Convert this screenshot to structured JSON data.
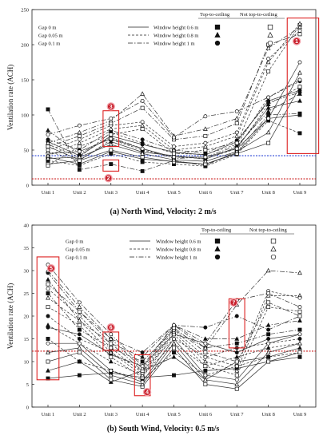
{
  "chart_data": [
    {
      "type": "line",
      "caption": "(a) North Wind, Velocity: 2 m/s",
      "ylabel": "Ventilation rate (ACH)",
      "ylim": [
        0,
        250
      ],
      "yticks": [
        "0",
        "50",
        "100",
        "150",
        "200",
        "250"
      ],
      "categories": [
        "Unit 1",
        "Unit 2",
        "Unit 3",
        "Unit 4",
        "Unit 5",
        "Unit 6",
        "Unit 7",
        "Unit 8",
        "Unit 9"
      ],
      "grid": false,
      "legend": {
        "gap_labels": [
          "Gap 0 m",
          "Gap 0.05 m",
          "Gap 0.1 m"
        ],
        "height_labels": [
          "Window height 0.6 m",
          "Window height 0.8 m",
          "Window height 1 m"
        ],
        "group_headers": [
          "Top-to-ceiling",
          "Not top-to-ceiling"
        ]
      },
      "reference_lines": [
        {
          "value": 42,
          "color": "#2a44d4"
        },
        {
          "value": 9,
          "color": "#cc2222"
        }
      ],
      "badges": [
        "1",
        "2",
        "3"
      ],
      "colors": {
        "badge": "#f2a0a8",
        "highlight_box": "#dd2222",
        "series": "#333333"
      },
      "series": [
        {
          "gap": "Gap 0 m",
          "window_height": "Window height 0.6 m",
          "group": "Top-to-ceiling",
          "values": [
            40,
            30,
            48,
            37,
            34,
            30,
            46,
            95,
            100
          ]
        },
        {
          "gap": "Gap 0 m",
          "window_height": "Window height 0.8 m",
          "group": "Top-to-ceiling",
          "values": [
            55,
            36,
            62,
            47,
            42,
            37,
            54,
            110,
            120
          ]
        },
        {
          "gap": "Gap 0 m",
          "window_height": "Window height 1 m",
          "group": "Top-to-ceiling",
          "values": [
            62,
            42,
            70,
            58,
            47,
            43,
            62,
            120,
            135
          ]
        },
        {
          "gap": "Gap 0.05 m",
          "window_height": "Window height 0.6 m",
          "group": "Top-to-ceiling",
          "values": [
            35,
            28,
            45,
            33,
            30,
            27,
            44,
            92,
            74
          ]
        },
        {
          "gap": "Gap 0.05 m",
          "window_height": "Window height 0.8 m",
          "group": "Top-to-ceiling",
          "values": [
            48,
            35,
            65,
            50,
            40,
            38,
            52,
            115,
            140
          ]
        },
        {
          "gap": "Gap 0.05 m",
          "window_height": "Window height 1 m",
          "group": "Top-to-ceiling",
          "values": [
            58,
            40,
            75,
            60,
            45,
            44,
            58,
            125,
            148
          ]
        },
        {
          "gap": "Gap 0.1 m",
          "window_height": "Window height 0.6 m",
          "group": "Top-to-ceiling",
          "values": [
            108,
            22,
            30,
            20,
            35,
            28,
            48,
            100,
            102
          ]
        },
        {
          "gap": "Gap 0.1 m",
          "window_height": "Window height 0.8 m",
          "group": "Top-to-ceiling",
          "values": [
            78,
            45,
            68,
            52,
            38,
            40,
            56,
            105,
            130
          ]
        },
        {
          "gap": "Gap 0.1 m",
          "window_height": "Window height 1 m",
          "group": "Top-to-ceiling",
          "values": [
            65,
            50,
            78,
            65,
            50,
            46,
            64,
            118,
            132
          ]
        },
        {
          "gap": "Gap 0 m",
          "window_height": "Window height 0.6 m",
          "group": "Not top-to-ceiling",
          "values": [
            30,
            35,
            50,
            40,
            33,
            30,
            45,
            60,
            140
          ]
        },
        {
          "gap": "Gap 0 m",
          "window_height": "Window height 0.8 m",
          "group": "Not top-to-ceiling",
          "values": [
            38,
            40,
            58,
            45,
            36,
            34,
            48,
            75,
            160
          ]
        },
        {
          "gap": "Gap 0 m",
          "window_height": "Window height 1 m",
          "group": "Not top-to-ceiling",
          "values": [
            45,
            48,
            66,
            52,
            40,
            40,
            52,
            95,
            175
          ]
        },
        {
          "gap": "Gap 0.05 m",
          "window_height": "Window height 0.6 m",
          "group": "Not top-to-ceiling",
          "values": [
            28,
            55,
            72,
            80,
            45,
            50,
            60,
            162,
            228
          ]
        },
        {
          "gap": "Gap 0.05 m",
          "window_height": "Window height 0.8 m",
          "group": "Not top-to-ceiling",
          "values": [
            42,
            60,
            80,
            85,
            50,
            55,
            70,
            175,
            230
          ]
        },
        {
          "gap": "Gap 0.05 m",
          "window_height": "Window height 1 m",
          "group": "Not top-to-ceiling",
          "values": [
            50,
            65,
            85,
            90,
            55,
            60,
            75,
            180,
            220
          ]
        },
        {
          "gap": "Gap 0.1 m",
          "window_height": "Window height 0.6 m",
          "group": "Not top-to-ceiling",
          "values": [
            55,
            70,
            88,
            110,
            65,
            70,
            88,
            200,
            215
          ]
        },
        {
          "gap": "Gap 0.1 m",
          "window_height": "Window height 0.8 m",
          "group": "Not top-to-ceiling",
          "values": [
            60,
            75,
            92,
            130,
            70,
            80,
            95,
            195,
            225
          ]
        },
        {
          "gap": "Gap 0.1 m",
          "window_height": "Window height 1 m",
          "group": "Not top-to-ceiling",
          "values": [
            72,
            85,
            95,
            120,
            68,
            98,
            105,
            125,
            150
          ]
        }
      ]
    },
    {
      "type": "line",
      "caption": "(b) South Wind, Velocity: 0.5 m/s",
      "ylabel": "Ventilation rate (ACH)",
      "ylim": [
        0,
        40
      ],
      "yticks": [
        "0",
        "5",
        "10",
        "15",
        "20",
        "25",
        "30",
        "35",
        "40"
      ],
      "categories": [
        "Unit 1",
        "Unit 2",
        "Unit 3",
        "Unit 4",
        "Unit 5",
        "Unit 6",
        "Unit 7",
        "Unit 8",
        "Unit 9"
      ],
      "grid": false,
      "legend": {
        "gap_labels": [
          "Gap 0 m",
          "Gap 0.05 m",
          "Gap 0.1 m"
        ],
        "height_labels": [
          "Window height 0.6 m",
          "Window height 0.8 m",
          "Window height 1 m"
        ],
        "group_headers": [
          "Top-to-ceiling",
          "Not top-to-ceiling"
        ]
      },
      "reference_lines": [
        {
          "value": 12.3,
          "color": "#cc2222"
        }
      ],
      "badges": [
        "5",
        "6",
        "4",
        "7"
      ],
      "colors": {
        "badge": "#f2a0a8",
        "highlight_box": "#dd2222",
        "series": "#333333"
      },
      "series": [
        {
          "gap": "Gap 0 m",
          "window_height": "Window height 0.6 m",
          "group": "Top-to-ceiling",
          "values": [
            6.3,
            7,
            7.5,
            6.5,
            7,
            8,
            8.5,
            10,
            11
          ]
        },
        {
          "gap": "Gap 0 m",
          "window_height": "Window height 0.8 m",
          "group": "Top-to-ceiling",
          "values": [
            8,
            10,
            5.5,
            8,
            11,
            6,
            10,
            11,
            13
          ]
        },
        {
          "gap": "Gap 0 m",
          "window_height": "Window height 1 m",
          "group": "Top-to-ceiling",
          "values": [
            17.5,
            16,
            11.5,
            9,
            16,
            14,
            12,
            15,
            16
          ]
        },
        {
          "gap": "Gap 0.05 m",
          "window_height": "Window height 0.6 m",
          "group": "Top-to-ceiling",
          "values": [
            15,
            10,
            8,
            6,
            12,
            7,
            9,
            11,
            12
          ]
        },
        {
          "gap": "Gap 0.05 m",
          "window_height": "Window height 0.8 m",
          "group": "Top-to-ceiling",
          "values": [
            18,
            14,
            10,
            7,
            14,
            9,
            11,
            13,
            14
          ]
        },
        {
          "gap": "Gap 0.05 m",
          "window_height": "Window height 1 m",
          "group": "Top-to-ceiling",
          "values": [
            20,
            15,
            12,
            8,
            15,
            11,
            13,
            14,
            15
          ]
        },
        {
          "gap": "Gap 0.1 m",
          "window_height": "Window height 0.6 m",
          "group": "Top-to-ceiling",
          "values": [
            25,
            17,
            13,
            10,
            17,
            13,
            14,
            16,
            17
          ]
        },
        {
          "gap": "Gap 0.1 m",
          "window_height": "Window height 0.8 m",
          "group": "Top-to-ceiling",
          "values": [
            28,
            19,
            14,
            11,
            18,
            15,
            15,
            18,
            19
          ]
        },
        {
          "gap": "Gap 0.1 m",
          "window_height": "Window height 1 m",
          "group": "Top-to-ceiling",
          "values": [
            29.5,
            21,
            15,
            12,
            18,
            17.5,
            20,
            17,
            20
          ]
        },
        {
          "gap": "Gap 0 m",
          "window_height": "Window height 0.6 m",
          "group": "Not top-to-ceiling",
          "values": [
            10,
            12,
            6,
            4.5,
            13,
            5,
            4,
            10,
            12
          ]
        },
        {
          "gap": "Gap 0 m",
          "window_height": "Window height 0.8 m",
          "group": "Not top-to-ceiling",
          "values": [
            12,
            13,
            7,
            5,
            14,
            6,
            5,
            12,
            14
          ]
        },
        {
          "gap": "Gap 0 m",
          "window_height": "Window height 1 m",
          "group": "Not top-to-ceiling",
          "values": [
            14,
            14,
            8,
            5.5,
            15,
            7,
            6,
            14,
            16
          ]
        },
        {
          "gap": "Gap 0.05 m",
          "window_height": "Window height 0.6 m",
          "group": "Not top-to-ceiling",
          "values": [
            22,
            18,
            11,
            6.5,
            16,
            9,
            7,
            22,
            21
          ]
        },
        {
          "gap": "Gap 0.05 m",
          "window_height": "Window height 0.8 m",
          "group": "Not top-to-ceiling",
          "values": [
            24,
            19,
            12,
            7,
            16.5,
            10,
            8,
            24.5,
            24.5
          ]
        },
        {
          "gap": "Gap 0.05 m",
          "window_height": "Window height 1 m",
          "group": "Not top-to-ceiling",
          "values": [
            26,
            20,
            13,
            7.5,
            17,
            11,
            9,
            25.5,
            24
          ]
        },
        {
          "gap": "Gap 0.1 m",
          "window_height": "Window height 0.6 m",
          "group": "Not top-to-ceiling",
          "values": [
            27,
            21,
            14,
            8,
            17.5,
            12,
            10,
            23,
            20
          ]
        },
        {
          "gap": "Gap 0.1 m",
          "window_height": "Window height 0.8 m",
          "group": "Not top-to-ceiling",
          "values": [
            30,
            22,
            15,
            8.5,
            18,
            13,
            22.5,
            30,
            29.5
          ]
        },
        {
          "gap": "Gap 0.1 m",
          "window_height": "Window height 1 m",
          "group": "Not top-to-ceiling",
          "values": [
            31.3,
            23,
            16,
            9,
            18,
            14,
            23.5,
            25,
            22
          ]
        }
      ]
    }
  ]
}
